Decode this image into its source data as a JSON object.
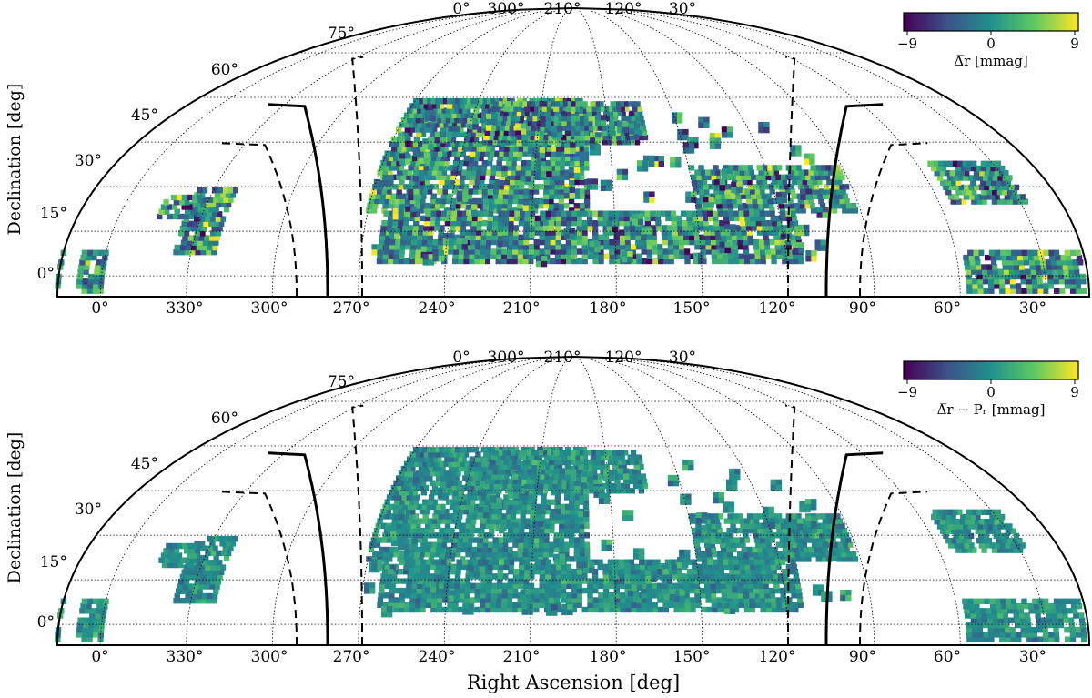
{
  "chart_data": [
    {
      "type": "heatmap",
      "projection": "sky map (equatorial coordinates), galactic plane overlaid",
      "xlabel": "",
      "ylabel": "Declination [deg]",
      "colorbar": {
        "label": "Δ̅r [mmag]",
        "ticks": [
          "−9",
          "0",
          "9"
        ],
        "range": [
          -9,
          9
        ],
        "colormap": [
          "#440154",
          "#3b528b",
          "#21918c",
          "#5ec962",
          "#fde725"
        ],
        "placement": "top-right"
      },
      "ra_tick_labels_bottom": [
        "0°",
        "330°",
        "300°",
        "270°",
        "240°",
        "210°",
        "180°",
        "150°",
        "120°",
        "90°",
        "60°",
        "30°"
      ],
      "ra_tick_labels_top": [
        "0°",
        "300°",
        "210°",
        "120°",
        "30°"
      ],
      "dec_tick_labels": [
        "0°",
        "15°",
        "30°",
        "45°",
        "60°",
        "75°"
      ],
      "footprint_regions_ra_dec_deg": [
        {
          "ra": [
            0,
            8
          ],
          "dec": [
            -5,
            8
          ]
        },
        {
          "ra": [
            322,
            336
          ],
          "dec": [
            8,
            30
          ]
        },
        {
          "ra": [
            334,
            346
          ],
          "dec": [
            20,
            28
          ]
        },
        {
          "ra": [
            190,
            270
          ],
          "dec": [
            22,
            60
          ]
        },
        {
          "ra": [
            165,
            232
          ],
          "dec": [
            45,
            58
          ]
        },
        {
          "ra": [
            92,
            150
          ],
          "dec": [
            22,
            38
          ]
        },
        {
          "ra": [
            115,
            265
          ],
          "dec": [
            5,
            22
          ]
        },
        {
          "ra": [
            15,
            58
          ],
          "dec": [
            -5,
            8
          ]
        },
        {
          "ra": [
            28,
            55
          ],
          "dec": [
            25,
            38
          ]
        }
      ],
      "value_distribution": "noisy",
      "grid": true,
      "galactic_plane_lines": {
        "solid": "b = 0°",
        "dashed": "b = ±15°"
      }
    },
    {
      "type": "heatmap",
      "projection": "sky map (equatorial coordinates), galactic plane overlaid",
      "xlabel": "Right Ascension [deg]",
      "ylabel": "Declination [deg]",
      "colorbar": {
        "label": "Δ̅r − Pᵣ [mmag]",
        "ticks": [
          "−9",
          "0",
          "9"
        ],
        "range": [
          -9,
          9
        ],
        "colormap": [
          "#440154",
          "#3b528b",
          "#21918c",
          "#5ec962",
          "#fde725"
        ],
        "placement": "top-right"
      },
      "ra_tick_labels_bottom": [
        "0°",
        "330°",
        "300°",
        "270°",
        "240°",
        "210°",
        "180°",
        "150°",
        "120°",
        "90°",
        "60°",
        "30°"
      ],
      "ra_tick_labels_top": [
        "0°",
        "300°",
        "210°",
        "120°",
        "30°"
      ],
      "dec_tick_labels": [
        "0°",
        "15°",
        "30°",
        "45°",
        "60°",
        "75°"
      ],
      "footprint_regions_ra_dec_deg": [
        {
          "ra": [
            0,
            8
          ],
          "dec": [
            -5,
            8
          ]
        },
        {
          "ra": [
            322,
            336
          ],
          "dec": [
            8,
            30
          ]
        },
        {
          "ra": [
            334,
            346
          ],
          "dec": [
            20,
            28
          ]
        },
        {
          "ra": [
            190,
            270
          ],
          "dec": [
            22,
            60
          ]
        },
        {
          "ra": [
            165,
            232
          ],
          "dec": [
            45,
            58
          ]
        },
        {
          "ra": [
            92,
            150
          ],
          "dec": [
            22,
            38
          ]
        },
        {
          "ra": [
            115,
            265
          ],
          "dec": [
            5,
            22
          ]
        },
        {
          "ra": [
            15,
            58
          ],
          "dec": [
            -5,
            8
          ]
        },
        {
          "ra": [
            28,
            55
          ],
          "dec": [
            25,
            38
          ]
        }
      ],
      "value_distribution": "near zero (residual)",
      "grid": true,
      "galactic_plane_lines": {
        "solid": "b = 0°",
        "dashed": "b = ±15°"
      }
    }
  ]
}
